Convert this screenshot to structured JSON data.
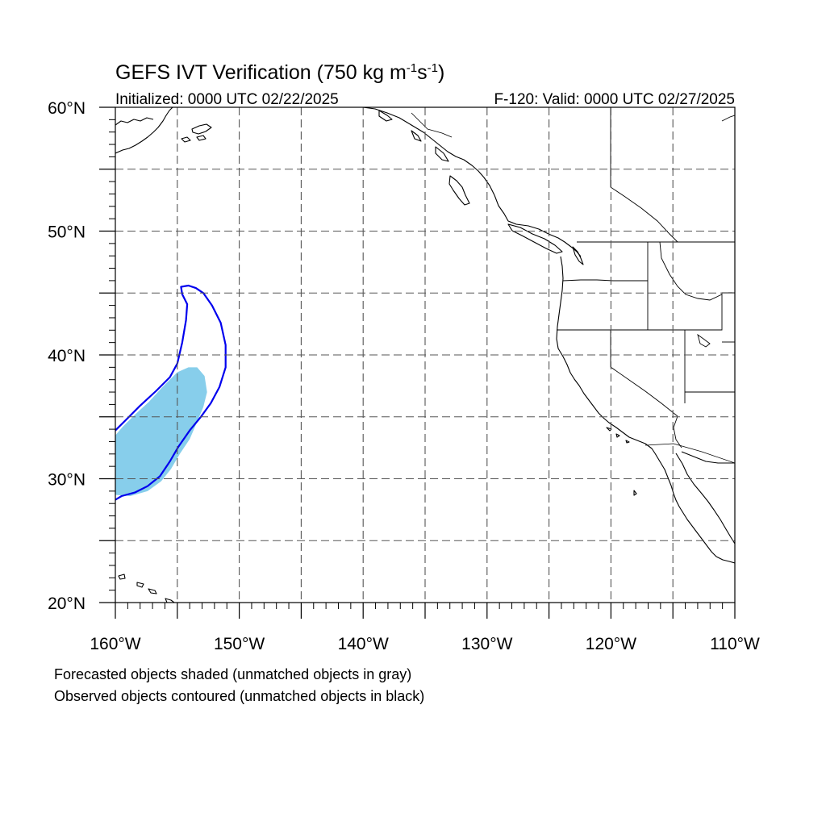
{
  "header": {
    "title_main": "GEFS IVT Verification (750 kg m",
    "title_sup1": "-1",
    "title_mid": "s",
    "title_sup2": "-1",
    "title_end": ")",
    "initialized": "Initialized: 0000 UTC 02/22/2025",
    "valid": "F-120: Valid: 0000 UTC 02/27/2025"
  },
  "map": {
    "lon_range": [
      -160,
      -110
    ],
    "lat_range": [
      20,
      60
    ],
    "lat_ticks": [
      {
        "lat": 60,
        "label": "60°N"
      },
      {
        "lat": 50,
        "label": "50°N"
      },
      {
        "lat": 40,
        "label": "40°N"
      },
      {
        "lat": 30,
        "label": "30°N"
      },
      {
        "lat": 20,
        "label": "20°N"
      }
    ],
    "lon_ticks": [
      {
        "lon": -160,
        "label": "160°W"
      },
      {
        "lon": -150,
        "label": "150°W"
      },
      {
        "lon": -140,
        "label": "140°W"
      },
      {
        "lon": -130,
        "label": "130°W"
      },
      {
        "lon": -120,
        "label": "120°W"
      },
      {
        "lon": -110,
        "label": "110°W"
      }
    ],
    "grid_lons": [
      -155,
      -150,
      -145,
      -140,
      -135,
      -130,
      -125,
      -120,
      -115
    ],
    "grid_lats": [
      25,
      30,
      35,
      40,
      45,
      50,
      55
    ],
    "forecast_object_color": "#87ceeb",
    "observed_contour_color": "#0000ee",
    "forecast_object": [
      [
        -160.0,
        28.7
      ],
      [
        -158.8,
        28.6
      ],
      [
        -157.4,
        29.0
      ],
      [
        -156.3,
        29.8
      ],
      [
        -155.5,
        30.8
      ],
      [
        -154.8,
        32.0
      ],
      [
        -154.0,
        33.2
      ],
      [
        -153.4,
        34.6
      ],
      [
        -152.9,
        35.8
      ],
      [
        -152.6,
        37.0
      ],
      [
        -152.8,
        38.3
      ],
      [
        -153.4,
        39.0
      ],
      [
        -154.1,
        39.0
      ],
      [
        -155.0,
        38.6
      ],
      [
        -156.2,
        37.4
      ],
      [
        -157.3,
        36.2
      ],
      [
        -158.4,
        35.2
      ],
      [
        -159.4,
        34.2
      ],
      [
        -160.0,
        33.5
      ]
    ],
    "observed_contour": [
      [
        -160.0,
        28.3
      ],
      [
        -159.5,
        28.6
      ],
      [
        -158.4,
        28.9
      ],
      [
        -157.4,
        29.4
      ],
      [
        -156.4,
        30.2
      ],
      [
        -155.6,
        31.4
      ],
      [
        -154.9,
        32.6
      ],
      [
        -154.0,
        33.9
      ],
      [
        -153.1,
        35.0
      ],
      [
        -152.3,
        36.1
      ],
      [
        -151.6,
        37.4
      ],
      [
        -151.1,
        39.0
      ],
      [
        -151.1,
        40.8
      ],
      [
        -151.5,
        42.6
      ],
      [
        -152.2,
        44.0
      ],
      [
        -152.9,
        45.0
      ],
      [
        -153.5,
        45.4
      ],
      [
        -154.1,
        45.6
      ],
      [
        -154.7,
        45.5
      ],
      [
        -154.6,
        44.9
      ],
      [
        -154.2,
        44.1
      ],
      [
        -154.3,
        42.8
      ],
      [
        -154.6,
        41.0
      ],
      [
        -155.0,
        39.3
      ],
      [
        -155.6,
        38.2
      ],
      [
        -156.7,
        37.1
      ],
      [
        -158.0,
        35.9
      ],
      [
        -159.2,
        34.7
      ],
      [
        -160.0,
        33.9
      ]
    ]
  },
  "captions": {
    "line1": "Forecasted objects shaded (unmatched objects in gray)",
    "line2": "Observed objects contoured (unmatched objects in black)"
  }
}
